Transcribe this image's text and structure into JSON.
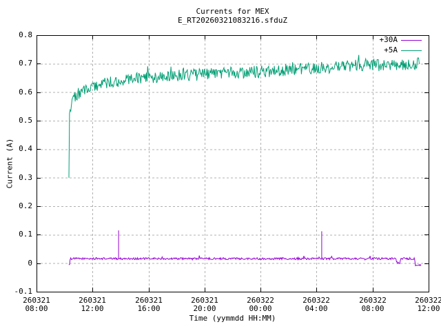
{
  "page": {
    "background": "#ffffff",
    "text_color": "#000000"
  },
  "chart_data": {
    "type": "line",
    "title": "Currents for MEX",
    "subtitle": "E_RT20260321083216.sfduZ",
    "xlabel": "Time (yymmdd HH:MM)",
    "ylabel": "Current (A)",
    "ylim": [
      -0.1,
      0.8
    ],
    "xlim_hours": [
      0,
      28
    ],
    "grid": true,
    "border_color": "#000000",
    "grid_color": "#b0b0b0",
    "yticks": [
      {
        "v": -0.1,
        "label": "-0.1"
      },
      {
        "v": 0.0,
        "label": "0"
      },
      {
        "v": 0.1,
        "label": "0.1"
      },
      {
        "v": 0.2,
        "label": "0.2"
      },
      {
        "v": 0.3,
        "label": "0.3"
      },
      {
        "v": 0.4,
        "label": "0.4"
      },
      {
        "v": 0.5,
        "label": "0.5"
      },
      {
        "v": 0.6,
        "label": "0.6"
      },
      {
        "v": 0.7,
        "label": "0.7"
      },
      {
        "v": 0.8,
        "label": "0.8"
      }
    ],
    "xticks": [
      {
        "t": 0,
        "date": "260321",
        "time": "08:00"
      },
      {
        "t": 4,
        "date": "260321",
        "time": "12:00"
      },
      {
        "t": 8,
        "date": "260321",
        "time": "16:00"
      },
      {
        "t": 12,
        "date": "260321",
        "time": "20:00"
      },
      {
        "t": 16,
        "date": "260322",
        "time": "00:00"
      },
      {
        "t": 20,
        "date": "260322",
        "time": "04:00"
      },
      {
        "t": 24,
        "date": "260322",
        "time": "08:00"
      },
      {
        "t": 28,
        "date": "260322",
        "time": "12:00"
      }
    ],
    "legend": {
      "position": "top-right",
      "entries": [
        {
          "label": "+30A",
          "color": "#9400d3"
        },
        {
          "label": "+5A",
          "color": "#009e73"
        }
      ]
    },
    "series": [
      {
        "name": "+30A",
        "color": "#9400d3",
        "noise_amp": 0.0035,
        "bump_chance": 0.035,
        "bump_size": 0.012,
        "baseline": [
          [
            2.31,
            -0.005
          ],
          [
            2.36,
            -0.005
          ],
          [
            2.38,
            0.016
          ],
          [
            25.65,
            0.016
          ],
          [
            25.72,
            0.002
          ],
          [
            25.95,
            0.002
          ],
          [
            26.0,
            0.016
          ],
          [
            27.0,
            0.016
          ],
          [
            27.06,
            -0.008
          ],
          [
            27.5,
            -0.008
          ]
        ],
        "spikes": [
          {
            "t": 5.86,
            "v": 0.115
          },
          {
            "t": 20.37,
            "v": 0.112
          }
        ]
      },
      {
        "name": "+5A",
        "color": "#009e73",
        "noise_amp": 0.021,
        "bump_chance": 0.06,
        "bump_size": 0.05,
        "baseline": [
          [
            2.313,
            0.3
          ],
          [
            2.33,
            0.52
          ],
          [
            2.5,
            0.562
          ],
          [
            2.8,
            0.588
          ],
          [
            3.2,
            0.603
          ],
          [
            4,
            0.62
          ],
          [
            5,
            0.632
          ],
          [
            6,
            0.64
          ],
          [
            7,
            0.647
          ],
          [
            8,
            0.652
          ],
          [
            9,
            0.655
          ],
          [
            10,
            0.658
          ],
          [
            11,
            0.66
          ],
          [
            12,
            0.663
          ],
          [
            13,
            0.665
          ],
          [
            14,
            0.668
          ],
          [
            15,
            0.67
          ],
          [
            16,
            0.672
          ],
          [
            17,
            0.675
          ],
          [
            18,
            0.678
          ],
          [
            19,
            0.681
          ],
          [
            20,
            0.684
          ],
          [
            21,
            0.687
          ],
          [
            22,
            0.69
          ],
          [
            23,
            0.693
          ],
          [
            24,
            0.695
          ],
          [
            25,
            0.697
          ],
          [
            26,
            0.698
          ],
          [
            27,
            0.7
          ],
          [
            27.4,
            0.7
          ]
        ],
        "spikes": []
      }
    ]
  }
}
